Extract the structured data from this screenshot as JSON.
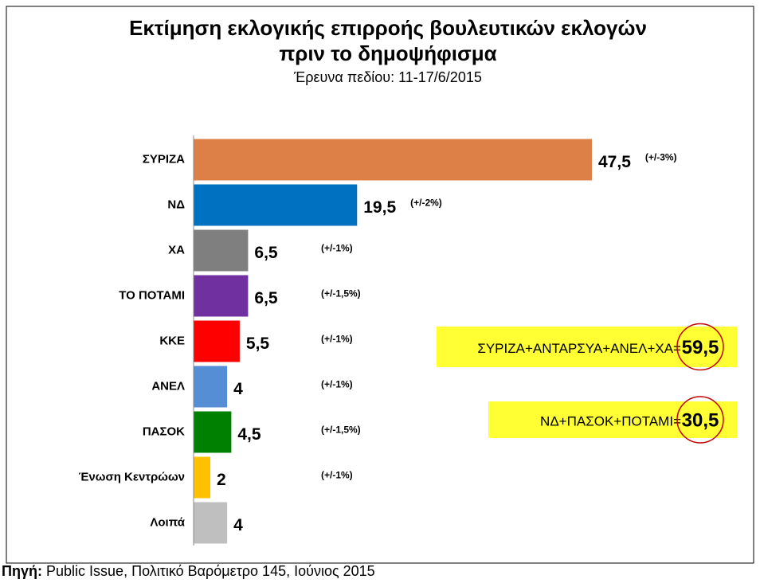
{
  "chart_data": {
    "type": "barh",
    "title": [
      "Εκτίμηση εκλογικής επιρροής βουλευτικών εκλογών",
      "πριν το δημοψήφισμα"
    ],
    "subtitle": "Έρευνα πεδίου: 11-17/6/2015",
    "categories": [
      "ΣΥΡΙΖΑ",
      "ΝΔ",
      "ΧΑ",
      "ΤΟ ΠΟΤΑΜΙ",
      "ΚΚΕ",
      "ΑΝΕΛ",
      "ΠΑΣΟΚ",
      "Ένωση Κεντρώων",
      "Λοιπά"
    ],
    "values": [
      47.5,
      19.5,
      6.5,
      6.5,
      5.5,
      4,
      4.5,
      2,
      4
    ],
    "value_labels": [
      "47,5",
      "19,5",
      "6,5",
      "6,5",
      "5,5",
      "4",
      "4,5",
      "2",
      "4"
    ],
    "colors": [
      "#dd8047",
      "#0070c0",
      "#7f7f7f",
      "#7030a0",
      "#ff0000",
      "#558ed5",
      "#008000",
      "#ffc000",
      "#bfbfbf"
    ],
    "error_labels": [
      "(+/-3%)",
      "(+/-2%)",
      "(+/-1%)",
      "(+/-1,5%)",
      "(+/-1%)",
      "(+/-1%)",
      "(+/-1,5%)",
      "(+/-1%)",
      null
    ],
    "annotations": [
      {
        "text": "ΣΥΡΙΖΑ+ΑΝΤΑΡΣΥΑ+ΑΝΕΛ+ΧΑ=",
        "total": "59,5"
      },
      {
        "text": "ΝΔ+ΠΑΣΟΚ+ΠΟΤΑΜΙ=",
        "total": "30,5"
      }
    ],
    "source": {
      "label": "Πηγή:",
      "text": "Public Issue, Πολιτικό Βαρόμετρο 145, Ιούνιος 2015"
    }
  }
}
